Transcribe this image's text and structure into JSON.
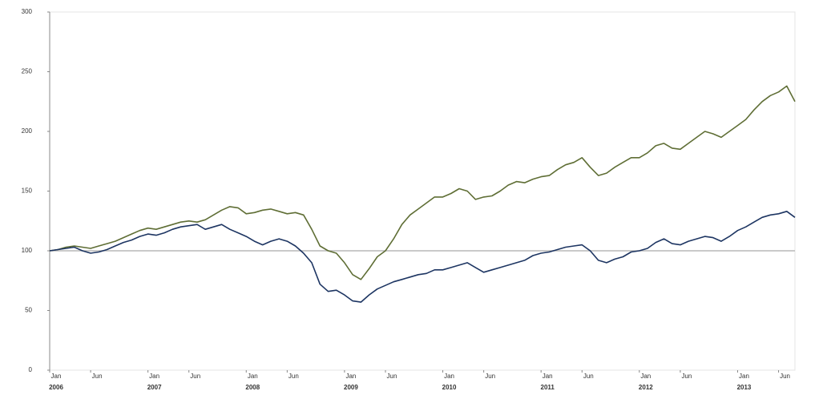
{
  "chart_data": {
    "type": "line",
    "x": [
      "2006-01",
      "2006-02",
      "2006-03",
      "2006-04",
      "2006-05",
      "2006-06",
      "2006-07",
      "2006-08",
      "2006-09",
      "2006-10",
      "2006-11",
      "2006-12",
      "2007-01",
      "2007-02",
      "2007-03",
      "2007-04",
      "2007-05",
      "2007-06",
      "2007-07",
      "2007-08",
      "2007-09",
      "2007-10",
      "2007-11",
      "2007-12",
      "2008-01",
      "2008-02",
      "2008-03",
      "2008-04",
      "2008-05",
      "2008-06",
      "2008-07",
      "2008-08",
      "2008-09",
      "2008-10",
      "2008-11",
      "2008-12",
      "2009-01",
      "2009-02",
      "2009-03",
      "2009-04",
      "2009-05",
      "2009-06",
      "2009-07",
      "2009-08",
      "2009-09",
      "2009-10",
      "2009-11",
      "2009-12",
      "2010-01",
      "2010-02",
      "2010-03",
      "2010-04",
      "2010-05",
      "2010-06",
      "2010-07",
      "2010-08",
      "2010-09",
      "2010-10",
      "2010-11",
      "2010-12",
      "2011-01",
      "2011-02",
      "2011-03",
      "2011-04",
      "2011-05",
      "2011-06",
      "2011-07",
      "2011-08",
      "2011-09",
      "2011-10",
      "2011-11",
      "2011-12",
      "2012-01",
      "2012-02",
      "2012-03",
      "2012-04",
      "2012-05",
      "2012-06",
      "2012-07",
      "2012-08",
      "2012-09",
      "2012-10",
      "2012-11",
      "2012-12",
      "2013-01",
      "2013-02",
      "2013-03",
      "2013-04",
      "2013-05",
      "2013-06",
      "2013-07",
      "2013-08"
    ],
    "series": [
      {
        "color": "#5f6e35",
        "values": [
          100,
          101,
          103,
          104,
          103,
          102,
          104,
          106,
          108,
          111,
          114,
          117,
          119,
          118,
          120,
          122,
          124,
          125,
          124,
          126,
          130,
          134,
          137,
          136,
          131,
          132,
          134,
          135,
          133,
          131,
          132,
          130,
          118,
          104,
          100,
          98,
          90,
          80,
          76,
          85,
          95,
          100,
          110,
          122,
          130,
          135,
          140,
          145,
          145,
          148,
          152,
          150,
          143,
          145,
          146,
          150,
          155,
          158,
          157,
          160,
          162,
          163,
          168,
          172,
          174,
          178,
          170,
          163,
          165,
          170,
          174,
          178,
          178,
          182,
          188,
          190,
          186,
          185,
          190,
          195,
          200,
          198,
          195,
          200,
          205,
          210,
          218,
          225,
          230,
          233,
          238,
          225
        ]
      },
      {
        "color": "#1d3562",
        "values": [
          100,
          101,
          102,
          103,
          100,
          98,
          99,
          101,
          104,
          107,
          109,
          112,
          114,
          113,
          115,
          118,
          120,
          121,
          122,
          118,
          120,
          122,
          118,
          115,
          112,
          108,
          105,
          108,
          110,
          108,
          104,
          98,
          90,
          72,
          66,
          67,
          63,
          58,
          57,
          63,
          68,
          71,
          74,
          76,
          78,
          80,
          81,
          84,
          84,
          86,
          88,
          90,
          86,
          82,
          84,
          86,
          88,
          90,
          92,
          96,
          98,
          99,
          101,
          103,
          104,
          105,
          100,
          92,
          90,
          93,
          95,
          99,
          100,
          102,
          107,
          110,
          106,
          105,
          108,
          110,
          112,
          111,
          108,
          112,
          117,
          120,
          124,
          128,
          130,
          131,
          133,
          128
        ]
      }
    ],
    "xlim": [
      "2006-01",
      "2013-08"
    ],
    "ylim": [
      0,
      300
    ],
    "yticks": [
      0,
      50,
      100,
      150,
      200,
      250,
      300
    ],
    "reference_line": 100,
    "xticks": [
      {
        "value": "2006-01",
        "label": "Jan"
      },
      {
        "value": "2006-06",
        "label": "Jun"
      },
      {
        "value": "2007-01",
        "label": "Jan"
      },
      {
        "value": "2007-06",
        "label": "Jun"
      },
      {
        "value": "2008-01",
        "label": "Jan"
      },
      {
        "value": "2008-06",
        "label": "Jun"
      },
      {
        "value": "2009-01",
        "label": "Jan"
      },
      {
        "value": "2009-06",
        "label": "Jun"
      },
      {
        "value": "2010-01",
        "label": "Jan"
      },
      {
        "value": "2010-06",
        "label": "Jun"
      },
      {
        "value": "2011-01",
        "label": "Jan"
      },
      {
        "value": "2011-06",
        "label": "Jun"
      },
      {
        "value": "2012-01",
        "label": "Jan"
      },
      {
        "value": "2012-06",
        "label": "Jun"
      },
      {
        "value": "2013-01",
        "label": "Jan"
      },
      {
        "value": "2013-06",
        "label": "Jun"
      }
    ],
    "xtick_years": [
      {
        "value": "2006-01",
        "label": "2006"
      },
      {
        "value": "2007-01",
        "label": "2007"
      },
      {
        "value": "2008-01",
        "label": "2008"
      },
      {
        "value": "2009-01",
        "label": "2009"
      },
      {
        "value": "2010-01",
        "label": "2010"
      },
      {
        "value": "2011-01",
        "label": "2011"
      },
      {
        "value": "2012-01",
        "label": "2012"
      },
      {
        "value": "2013-01",
        "label": "2013"
      }
    ]
  }
}
